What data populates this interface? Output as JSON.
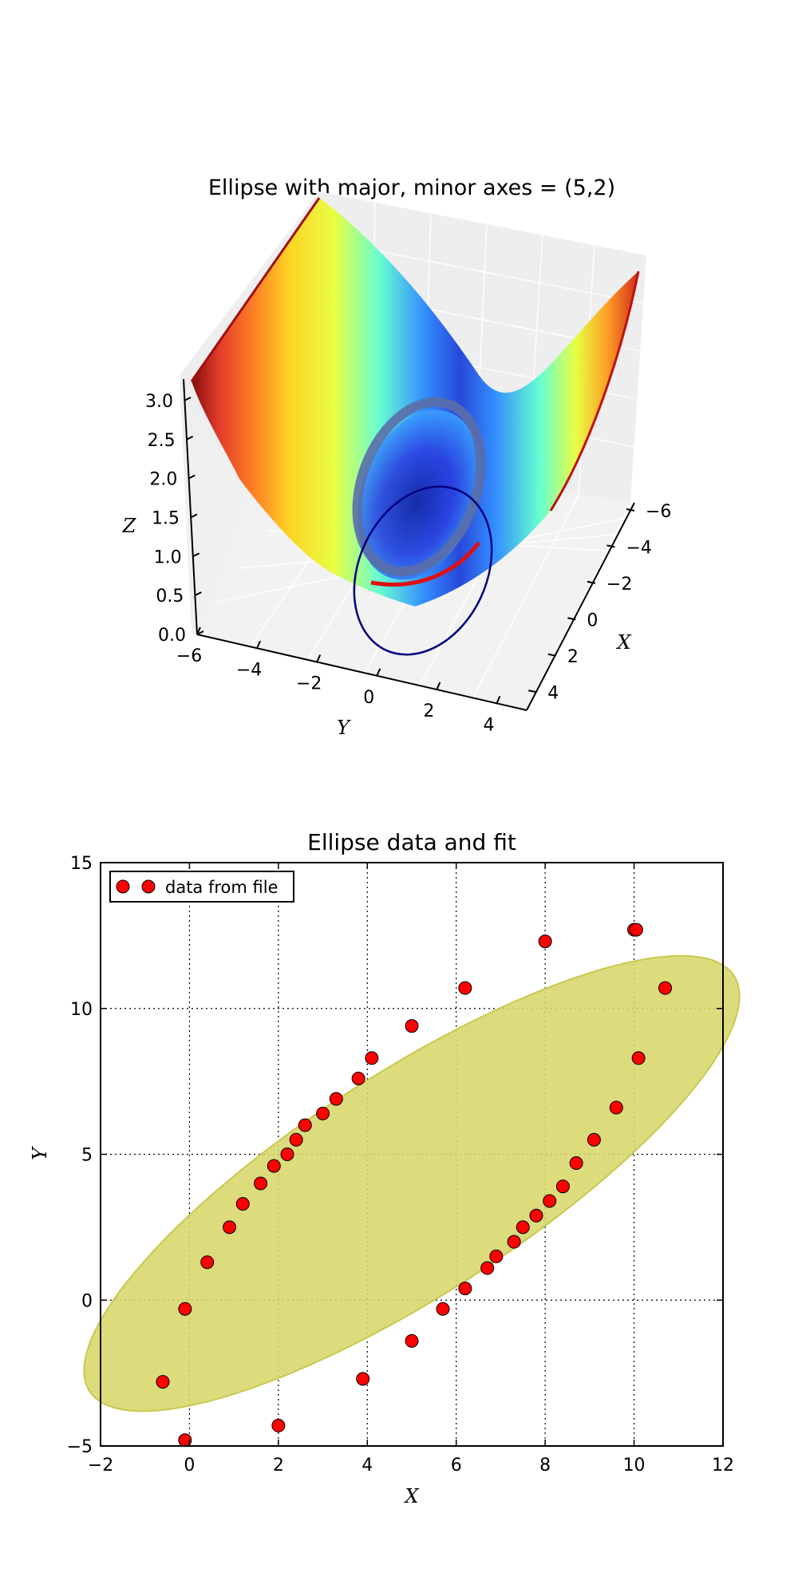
{
  "chart_data": [
    {
      "type": "surface3d",
      "title": "Ellipse with major, minor axes = (5,2)",
      "xlabel": "X",
      "ylabel": "Y",
      "zlabel": "Z",
      "xticks": [
        "−6",
        "−4",
        "−2",
        "0",
        "2",
        "4"
      ],
      "yticks": [
        "−6",
        "−4",
        "−2",
        "0",
        "2",
        "4"
      ],
      "zticks": [
        "0.0",
        "0.5",
        "1.0",
        "1.5",
        "2.0",
        "2.5",
        "3.0"
      ],
      "xlim": [
        -6,
        5
      ],
      "ylim": [
        -6,
        5
      ],
      "zlim": [
        0,
        3.2
      ],
      "colormap": "jet",
      "grid": true
    },
    {
      "type": "scatter",
      "title": "Ellipse data and fit",
      "xlabel": "X",
      "ylabel": "Y",
      "xlim": [
        -2,
        12
      ],
      "ylim": [
        -5,
        15
      ],
      "xticks": [
        "−2",
        "0",
        "2",
        "4",
        "6",
        "8",
        "10",
        "12"
      ],
      "yticks": [
        "−5",
        "0",
        "5",
        "10",
        "15"
      ],
      "grid": true,
      "legend": {
        "position": "top-left",
        "label": "data from file"
      },
      "series": [
        {
          "name": "data from file",
          "color": "#ff0000",
          "points": [
            [
              -0.6,
              -2.8
            ],
            [
              -0.1,
              -4.8
            ],
            [
              -0.1,
              -0.3
            ],
            [
              0.4,
              1.3
            ],
            [
              0.9,
              2.5
            ],
            [
              1.2,
              3.3
            ],
            [
              1.6,
              4.0
            ],
            [
              1.9,
              4.6
            ],
            [
              2.2,
              5.0
            ],
            [
              2.4,
              5.5
            ],
            [
              2.6,
              6.0
            ],
            [
              3.0,
              6.4
            ],
            [
              3.3,
              6.9
            ],
            [
              3.8,
              7.6
            ],
            [
              4.1,
              8.3
            ],
            [
              5.0,
              9.4
            ],
            [
              6.2,
              10.7
            ],
            [
              8.0,
              12.3
            ],
            [
              10.0,
              12.7
            ],
            [
              10.05,
              12.7
            ],
            [
              10.7,
              10.7
            ],
            [
              10.1,
              8.3
            ],
            [
              9.6,
              6.6
            ],
            [
              9.1,
              5.5
            ],
            [
              8.7,
              4.7
            ],
            [
              8.4,
              3.9
            ],
            [
              8.1,
              3.4
            ],
            [
              7.8,
              2.9
            ],
            [
              7.5,
              2.5
            ],
            [
              7.3,
              2.0
            ],
            [
              6.9,
              1.5
            ],
            [
              6.7,
              1.1
            ],
            [
              6.2,
              0.4
            ],
            [
              5.7,
              -0.3
            ],
            [
              5.0,
              -1.4
            ],
            [
              3.9,
              -2.7
            ],
            [
              2.0,
              -4.3
            ]
          ]
        }
      ],
      "fit_ellipse": {
        "center": [
          5,
          4
        ],
        "semi_major": 10.25,
        "semi_minor": 3.2,
        "angle_deg": 47,
        "color": "#d7d76b"
      }
    }
  ]
}
